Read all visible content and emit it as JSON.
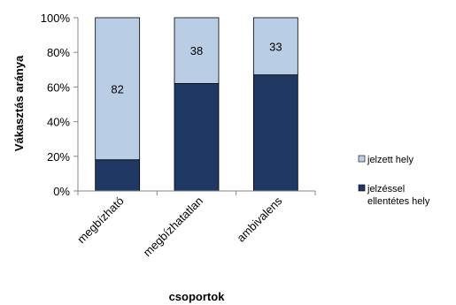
{
  "chart_data": {
    "type": "bar",
    "stacked": true,
    "percent": true,
    "categories": [
      "megbízható",
      "megbízhatatlan",
      "ambivalens"
    ],
    "series": [
      {
        "name": "jelzéssel ellentétes hely",
        "values": [
          18,
          62,
          67
        ],
        "color": "#1f3864"
      },
      {
        "name": "jelzett hely",
        "values": [
          82,
          38,
          33
        ],
        "color": "#b9cde5"
      }
    ],
    "data_labels": [
      "82",
      "38",
      "33"
    ],
    "xlabel": "csoportok",
    "ylabel": "Vákasztás aránya",
    "yticks": [
      "0%",
      "20%",
      "40%",
      "60%",
      "80%",
      "100%"
    ],
    "ylim": [
      0,
      100
    ],
    "grid": false,
    "legend": {
      "position": "right",
      "items": [
        {
          "lines": [
            "jelzett hely"
          ],
          "color": "#b9cde5"
        },
        {
          "lines": [
            "jelzéssel",
            "ellentétes hely"
          ],
          "color": "#1f3864"
        }
      ]
    }
  }
}
